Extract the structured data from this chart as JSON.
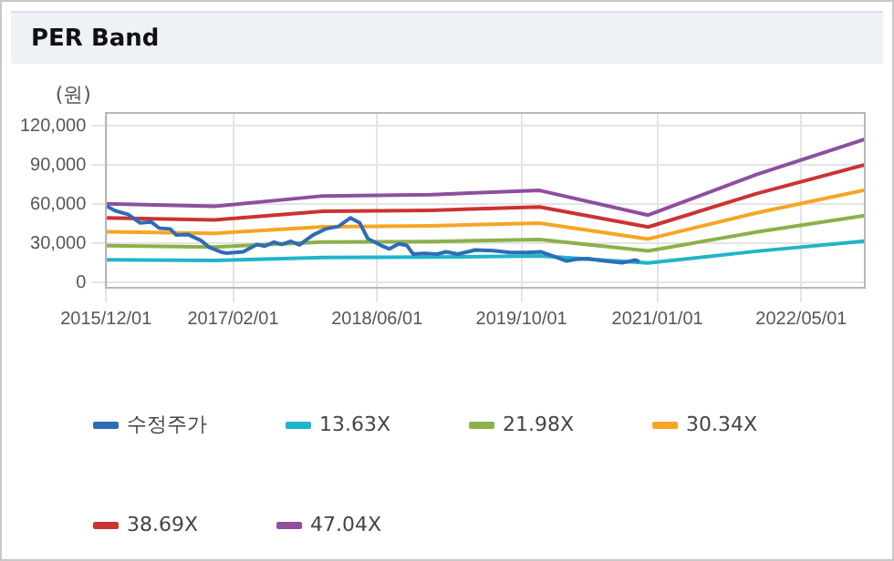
{
  "chart_data": {
    "type": "line",
    "title": "PER Band",
    "ylabel": "(원)",
    "xlim": [
      "2015-12-01",
      "2022-12-01"
    ],
    "ylim": [
      -4000,
      130000
    ],
    "xticks": [
      {
        "value": "2015-12-01",
        "label": "2015/12/01"
      },
      {
        "value": "2017-02-01",
        "label": "2017/02/01"
      },
      {
        "value": "2018-06-01",
        "label": "2018/06/01"
      },
      {
        "value": "2019-10-01",
        "label": "2019/10/01"
      },
      {
        "value": "2021-01-01",
        "label": "2021/01/01"
      },
      {
        "value": "2022-05-01",
        "label": "2022/05/01"
      }
    ],
    "yticks": [
      {
        "value": 0,
        "label": "0"
      },
      {
        "value": 30000,
        "label": "30,000"
      },
      {
        "value": 60000,
        "label": "60,000"
      },
      {
        "value": 90000,
        "label": "90,000"
      },
      {
        "value": 120000,
        "label": "120,000"
      }
    ],
    "grid": true,
    "legend": "bottom",
    "marker": "none",
    "line_style": "solid",
    "series": [
      {
        "name": "수정주가",
        "color": "#2e6cb5",
        "x": [
          "2015-12-01",
          "2016-01-01",
          "2016-02-13",
          "2016-03-25",
          "2016-05-01",
          "2016-05-28",
          "2016-07-04",
          "2016-07-25",
          "2016-09-01",
          "2016-10-15",
          "2016-11-13",
          "2016-12-28",
          "2017-01-10",
          "2017-03-07",
          "2017-04-22",
          "2017-05-19",
          "2017-06-19",
          "2017-07-15",
          "2017-08-15",
          "2017-09-13",
          "2017-10-28",
          "2017-12-10",
          "2018-01-22",
          "2018-03-04",
          "2018-04-04",
          "2018-05-01",
          "2018-06-15",
          "2018-07-13",
          "2018-08-13",
          "2018-09-10",
          "2018-10-01",
          "2018-11-07",
          "2018-12-22",
          "2019-01-19",
          "2019-03-01",
          "2019-04-28",
          "2019-06-28",
          "2019-08-25",
          "2019-10-22",
          "2019-12-04",
          "2020-01-15",
          "2020-03-01",
          "2020-04-01",
          "2020-05-10",
          "2020-07-07",
          "2020-09-04",
          "2020-10-19",
          "2020-11-01"
        ],
        "values": [
          58900,
          55000,
          52300,
          45700,
          46500,
          41700,
          41100,
          36400,
          36900,
          32400,
          27000,
          23000,
          22600,
          23600,
          29200,
          27900,
          31000,
          29200,
          31600,
          28900,
          36400,
          41100,
          43000,
          49600,
          45700,
          33700,
          28400,
          25800,
          29700,
          28400,
          21800,
          22300,
          21800,
          23600,
          21800,
          25000,
          24400,
          23000,
          23000,
          23600,
          20400,
          16500,
          17800,
          18300,
          16500,
          15100,
          17300,
          16000
        ]
      },
      {
        "name": "13.63X",
        "color": "#1fb5c9",
        "x": [
          "2015-12-01",
          "2016-12-01",
          "2017-12-01",
          "2018-12-01",
          "2019-12-01",
          "2020-12-01",
          "2021-12-01",
          "2022-12-01"
        ],
        "values": [
          17500,
          16900,
          19200,
          19500,
          20400,
          15000,
          24000,
          31800
        ]
      },
      {
        "name": "21.98X",
        "color": "#8db04a",
        "x": [
          "2015-12-01",
          "2016-12-01",
          "2017-12-01",
          "2018-12-01",
          "2019-12-01",
          "2020-12-01",
          "2021-12-01",
          "2022-12-01"
        ],
        "values": [
          28200,
          27300,
          31000,
          31500,
          33000,
          24200,
          38700,
          51300
        ]
      },
      {
        "name": "30.34X",
        "color": "#f5a623",
        "x": [
          "2015-12-01",
          "2016-12-01",
          "2017-12-01",
          "2018-12-01",
          "2019-12-01",
          "2020-12-01",
          "2021-12-01",
          "2022-12-01"
        ],
        "values": [
          38900,
          37700,
          42800,
          43500,
          45500,
          33400,
          53400,
          70800
        ]
      },
      {
        "name": "38.69X",
        "color": "#cc3333",
        "x": [
          "2015-12-01",
          "2016-12-01",
          "2017-12-01",
          "2018-12-01",
          "2019-12-01",
          "2020-12-01",
          "2021-12-01",
          "2022-12-01"
        ],
        "values": [
          49600,
          48000,
          54600,
          55400,
          58000,
          42600,
          68100,
          90300
        ]
      },
      {
        "name": "47.04X",
        "color": "#8e4f9e",
        "x": [
          "2015-12-01",
          "2016-12-01",
          "2017-12-01",
          "2018-12-01",
          "2019-12-01",
          "2020-12-01",
          "2021-12-01",
          "2022-12-01"
        ],
        "values": [
          60300,
          58400,
          66400,
          67400,
          70600,
          51700,
          82800,
          109800
        ]
      }
    ]
  }
}
